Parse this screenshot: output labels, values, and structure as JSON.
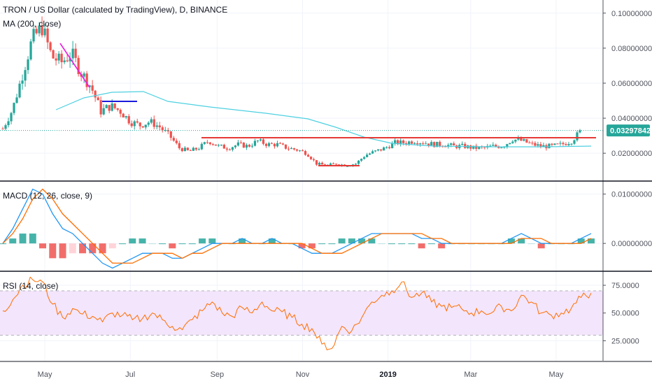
{
  "header": {
    "title": "TRON / US Dollar (calculated by TradingView), D, BINANCE",
    "ma_label": "MA (200, close)",
    "macd_label": "MACD (12, 26, close, 9)",
    "rsi_label": "RSI (14, close)"
  },
  "colors": {
    "up": "#26a69a",
    "down": "#ef5350",
    "ma": "#4dd0e1",
    "macd": "#2196f3",
    "signal": "#ff6d00",
    "rsi": "#ff6d00",
    "rsi_band": "#f3e5fb",
    "price_badge": "#26a69a",
    "support": "#e53935",
    "trendline": "#e91ee0",
    "level": "#1a1adb"
  },
  "last_price_label": "0.03297842",
  "chart_data": [
    {
      "type": "candlestick",
      "panel": "price",
      "y_tick_labels": [
        "0.10000000",
        "0.08000000",
        "0.06000000",
        "0.04000000",
        "0.02000000"
      ],
      "y_ticks": [
        0.1,
        0.08,
        0.06,
        0.04,
        0.02
      ],
      "ylim": [
        0.0045,
        0.1075
      ],
      "last_price": 0.03297842,
      "series": [
        {
          "name": "TRXUSD",
          "x": [
            "2018-04-01",
            "2018-04-08",
            "2018-04-15",
            "2018-04-22",
            "2018-04-29",
            "2018-05-06",
            "2018-05-13",
            "2018-05-20",
            "2018-05-27",
            "2018-06-03",
            "2018-06-10",
            "2018-06-17",
            "2018-06-24",
            "2018-07-01",
            "2018-07-08",
            "2018-07-15",
            "2018-07-22",
            "2018-07-29",
            "2018-08-05",
            "2018-08-12",
            "2018-08-19",
            "2018-08-26",
            "2018-09-02",
            "2018-09-09",
            "2018-09-16",
            "2018-09-23",
            "2018-09-30",
            "2018-10-07",
            "2018-10-14",
            "2018-10-21",
            "2018-10-28",
            "2018-11-04",
            "2018-11-11",
            "2018-11-18",
            "2018-11-25",
            "2018-12-02",
            "2018-12-09",
            "2018-12-16",
            "2018-12-23",
            "2018-12-30",
            "2019-01-06",
            "2019-01-13",
            "2019-01-20",
            "2019-01-27",
            "2019-02-03",
            "2019-02-10",
            "2019-02-17",
            "2019-02-24",
            "2019-03-03",
            "2019-03-10",
            "2019-03-17",
            "2019-03-24",
            "2019-03-31",
            "2019-04-07",
            "2019-04-14",
            "2019-04-21",
            "2019-04-28",
            "2019-05-05",
            "2019-05-12",
            "2019-05-19"
          ],
          "close": [
            0.034,
            0.045,
            0.065,
            0.085,
            0.092,
            0.075,
            0.072,
            0.077,
            0.066,
            0.058,
            0.044,
            0.047,
            0.044,
            0.038,
            0.036,
            0.038,
            0.035,
            0.03,
            0.023,
            0.021,
            0.023,
            0.027,
            0.024,
            0.023,
            0.025,
            0.024,
            0.027,
            0.025,
            0.025,
            0.023,
            0.022,
            0.02,
            0.014,
            0.013,
            0.014,
            0.013,
            0.014,
            0.019,
            0.021,
            0.023,
            0.026,
            0.026,
            0.027,
            0.026,
            0.025,
            0.025,
            0.024,
            0.024,
            0.023,
            0.023,
            0.024,
            0.024,
            0.028,
            0.027,
            0.025,
            0.024,
            0.024,
            0.025,
            0.027,
            0.033
          ]
        }
      ],
      "annotations": [
        "MA 200 line",
        "pink descending trendline",
        "blue horizontal level",
        "red support/resistance levels"
      ]
    },
    {
      "type": "line",
      "panel": "macd",
      "y_tick_labels": [
        "0.01000000",
        "0.00000000"
      ],
      "y_ticks": [
        0.01,
        0.0
      ],
      "ylim": [
        -0.0055,
        0.0125
      ],
      "series": [
        {
          "name": "MACD",
          "values": [
            0.0,
            0.003,
            0.007,
            0.011,
            0.01,
            0.006,
            0.003,
            0.002,
            0.0,
            -0.002,
            -0.004,
            -0.005,
            -0.004,
            -0.003,
            -0.002,
            -0.002,
            -0.002,
            -0.003,
            -0.003,
            -0.002,
            -0.001,
            0.0,
            0.0,
            0.0,
            0.001,
            0.0,
            0.0,
            0.001,
            0.0,
            0.0,
            -0.001,
            -0.002,
            -0.002,
            -0.002,
            -0.001,
            0.0,
            0.001,
            0.002,
            0.002,
            0.002,
            0.002,
            0.002,
            0.001,
            0.001,
            0.0,
            0.0,
            0.0,
            0.0,
            0.0,
            0.0,
            0.0,
            0.001,
            0.002,
            0.001,
            0.0,
            0.0,
            0.0,
            0.0,
            0.001,
            0.002
          ]
        },
        {
          "name": "Signal",
          "values": [
            0.0,
            0.002,
            0.005,
            0.009,
            0.011,
            0.009,
            0.006,
            0.004,
            0.002,
            0.0,
            -0.002,
            -0.004,
            -0.004,
            -0.004,
            -0.003,
            -0.002,
            -0.002,
            -0.002,
            -0.003,
            -0.002,
            -0.002,
            -0.001,
            0.0,
            0.0,
            0.0,
            0.0,
            0.0,
            0.0,
            0.0,
            0.0,
            0.0,
            -0.001,
            -0.002,
            -0.002,
            -0.002,
            -0.001,
            0.0,
            0.001,
            0.002,
            0.002,
            0.002,
            0.002,
            0.002,
            0.001,
            0.001,
            0.0,
            0.0,
            0.0,
            0.0,
            0.0,
            0.0,
            0.0,
            0.001,
            0.001,
            0.001,
            0.0,
            0.0,
            0.0,
            0.0,
            0.001
          ]
        }
      ]
    },
    {
      "type": "line",
      "panel": "rsi",
      "y_tick_labels": [
        "75.0000",
        "50.0000",
        "25.0000"
      ],
      "y_ticks": [
        75,
        50,
        25
      ],
      "ylim": [
        7,
        87
      ],
      "band": [
        30,
        70
      ],
      "series": [
        {
          "name": "RSI",
          "values": [
            52,
            62,
            75,
            80,
            78,
            58,
            46,
            54,
            49,
            47,
            42,
            50,
            48,
            44,
            45,
            50,
            44,
            38,
            35,
            44,
            52,
            60,
            50,
            47,
            55,
            50,
            60,
            52,
            51,
            46,
            40,
            36,
            22,
            18,
            38,
            34,
            46,
            60,
            66,
            70,
            78,
            64,
            68,
            60,
            56,
            55,
            54,
            50,
            52,
            50,
            56,
            52,
            66,
            60,
            50,
            48,
            50,
            54,
            64,
            68
          ]
        }
      ]
    }
  ],
  "x_axis": {
    "labels": [
      "May",
      "Jul",
      "Sep",
      "Nov",
      "2019",
      "Mar",
      "May"
    ],
    "label_dates": [
      "2018-05-01",
      "2018-07-01",
      "2018-09-01",
      "2018-11-01",
      "2019-01-01",
      "2019-03-01",
      "2019-05-01"
    ]
  }
}
